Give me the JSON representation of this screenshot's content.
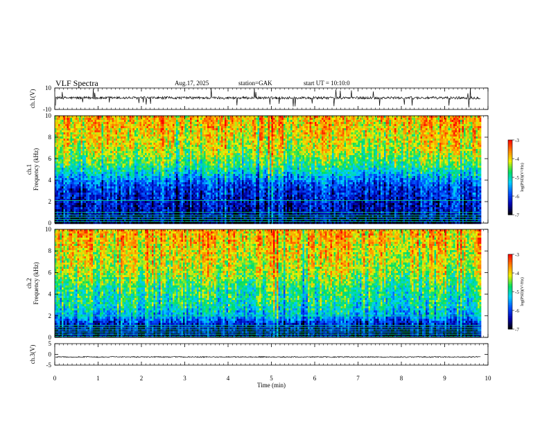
{
  "header": {
    "title": "VLF  Spectra",
    "date": "Aug.17, 2025",
    "station": "station=GAK",
    "start": "start  UT  =   10:10:0"
  },
  "chart_data": [
    {
      "type": "line",
      "name": "ch1-waveform",
      "ylabel": "ch.1(V)",
      "ylim": [
        -10,
        10
      ],
      "yticks": [
        "10",
        "-10"
      ],
      "baseline": 0.8,
      "noise_amplitude": 1.2,
      "x_extent_min": 9.83
    },
    {
      "type": "heatmap",
      "name": "ch1-spectrogram",
      "ylabel": "ch.1\nFrequency  (kHz)",
      "ylim": [
        0,
        10
      ],
      "yticks": [
        "0",
        "2",
        "4",
        "6",
        "8",
        "10"
      ],
      "x_extent_min": 9.83,
      "profile": [
        {
          "f": 0.0,
          "level": -6.8
        },
        {
          "f": 1.0,
          "level": -6.4
        },
        {
          "f": 2.0,
          "level": -6.3
        },
        {
          "f": 3.5,
          "level": -6.0
        },
        {
          "f": 4.5,
          "level": -5.3
        },
        {
          "f": 5.5,
          "level": -4.7
        },
        {
          "f": 7.0,
          "level": -4.2
        },
        {
          "f": 10.0,
          "level": -3.8
        }
      ],
      "lines_khz": [
        0.15,
        0.35,
        0.55,
        0.75,
        1.0,
        2.1
      ]
    },
    {
      "type": "heatmap",
      "name": "ch2-spectrogram",
      "ylabel": "ch.2\nFrequency  (kHz)",
      "ylim": [
        0,
        10
      ],
      "yticks": [
        "0",
        "2",
        "4",
        "6",
        "8",
        "10"
      ],
      "x_extent_min": 9.83,
      "profile": [
        {
          "f": 0.0,
          "level": -6.7
        },
        {
          "f": 1.0,
          "level": -6.4
        },
        {
          "f": 2.0,
          "level": -5.4
        },
        {
          "f": 3.0,
          "level": -5.0
        },
        {
          "f": 4.5,
          "level": -4.8
        },
        {
          "f": 6.0,
          "level": -4.3
        },
        {
          "f": 10.0,
          "level": -3.8
        }
      ],
      "lines_khz": [
        0.1,
        0.3,
        0.5,
        0.7,
        0.9,
        1.1,
        2.0
      ]
    },
    {
      "type": "line",
      "name": "ch3-waveform",
      "ylabel": "ch.3(V)",
      "ylim": [
        -5,
        5
      ],
      "yticks": [
        "5",
        "0",
        "-5"
      ],
      "baseline": -1.2,
      "noise_amplitude": 0.25,
      "x_extent_min": 9.83
    }
  ],
  "xaxis": {
    "label": "Time  (min)",
    "ticks": [
      "0",
      "1",
      "2",
      "3",
      "4",
      "5",
      "6",
      "7",
      "8",
      "9",
      "10"
    ],
    "range": [
      0,
      10
    ]
  },
  "colorbar": {
    "label": "log(PSD)(V²/Hz)",
    "ticks": [
      "-3",
      "-4",
      "-5",
      "-6",
      "-7"
    ],
    "range": [
      -7,
      -3
    ]
  },
  "colors": {
    "scale": [
      "#000000",
      "#0000b0",
      "#0050ff",
      "#00d0ff",
      "#00e060",
      "#f0f000",
      "#ff8000",
      "#ff0000"
    ]
  }
}
